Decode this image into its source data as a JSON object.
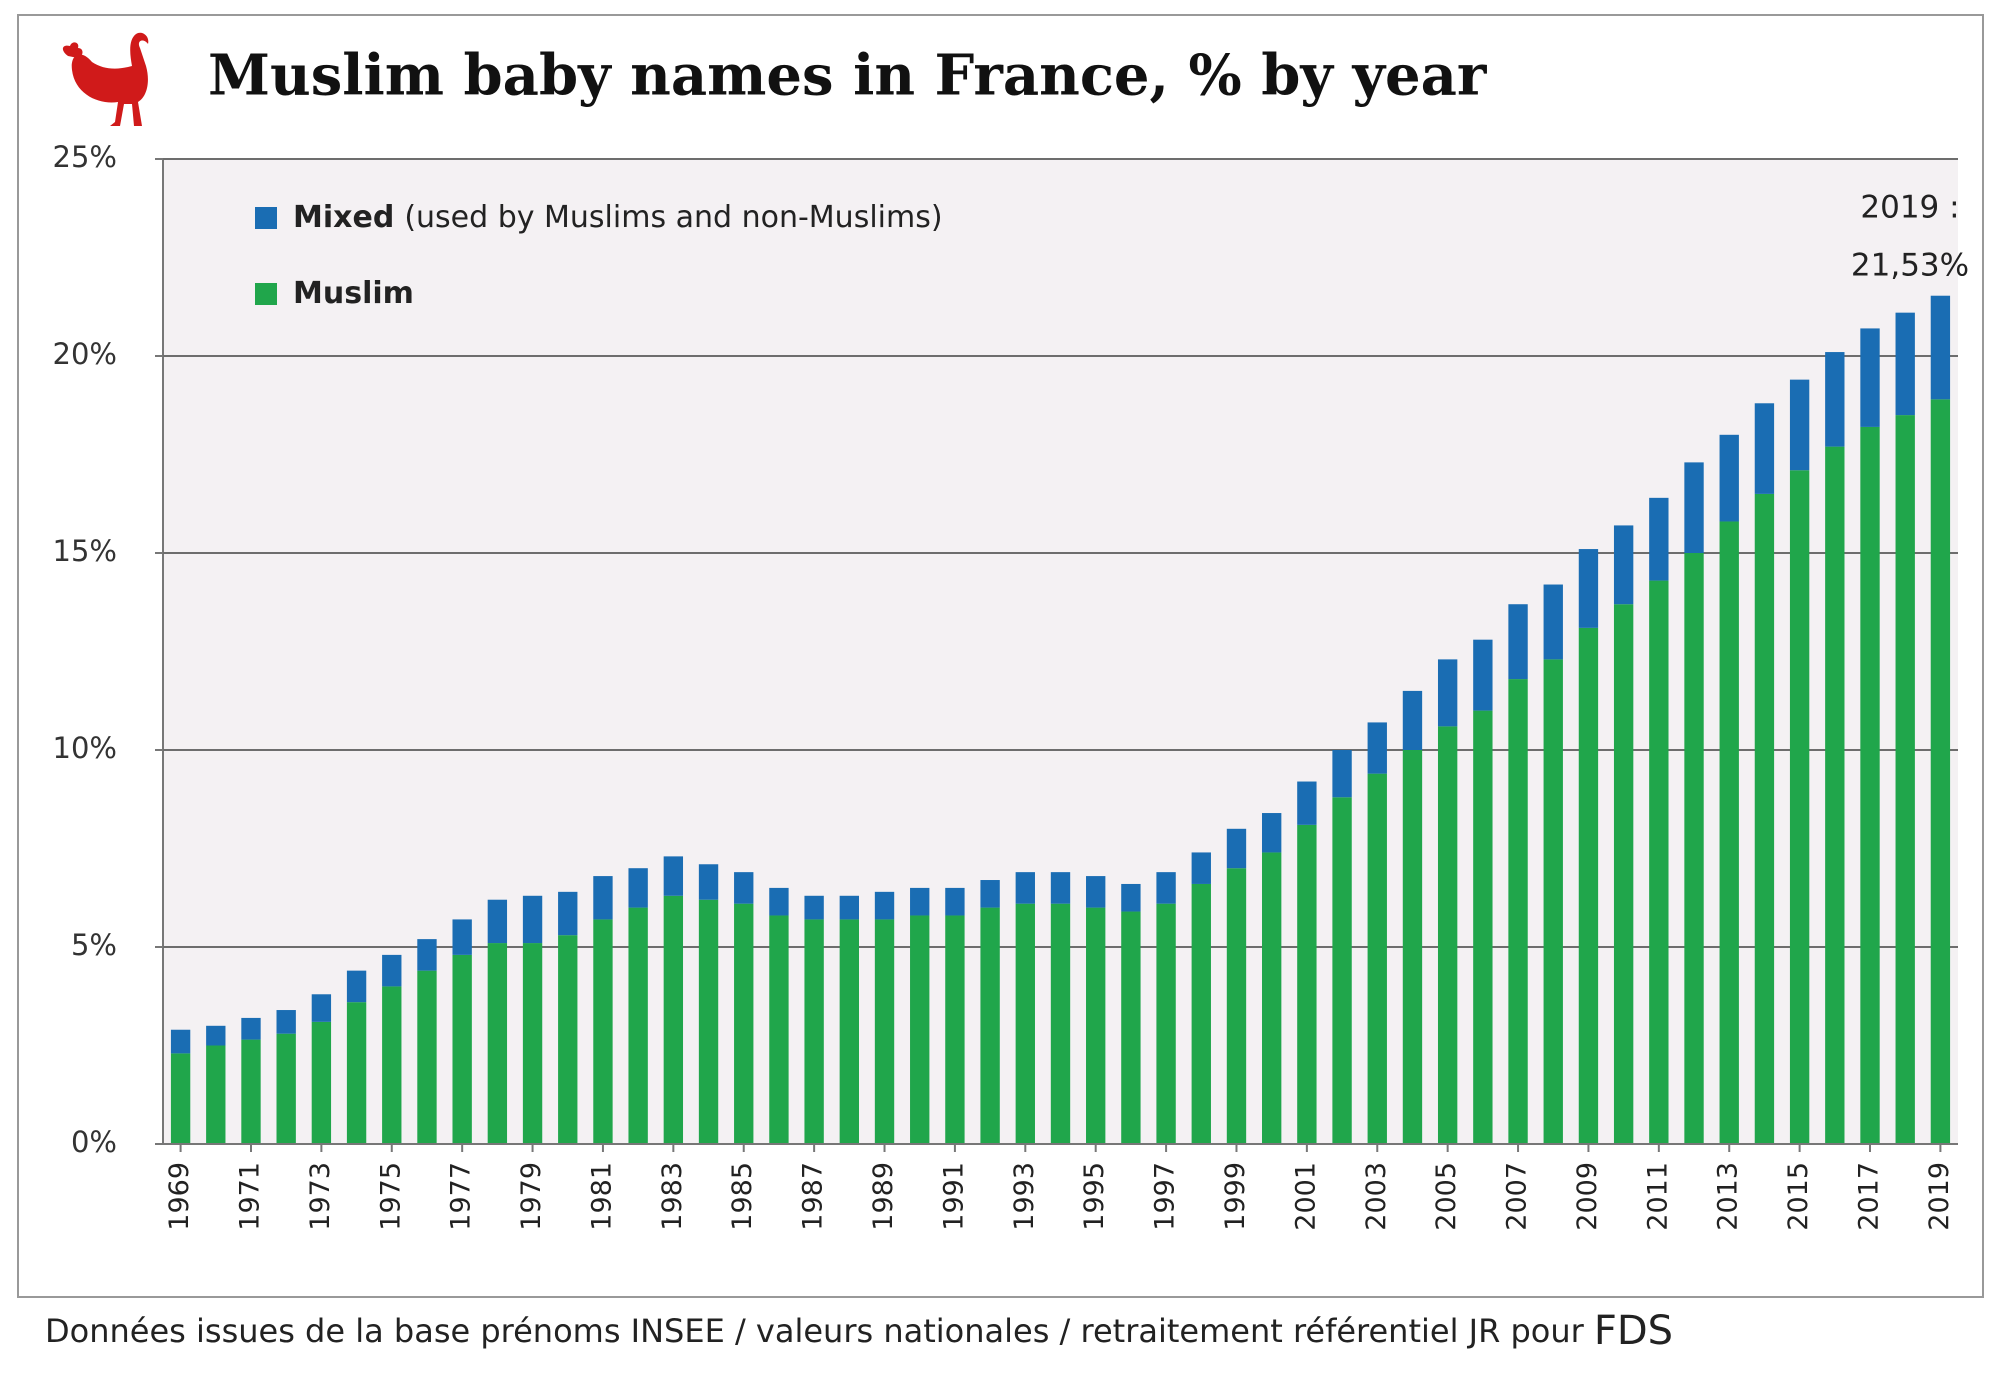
{
  "chart_data": {
    "type": "stacked_bar",
    "title": "Muslim baby names in France, % by year",
    "categories": [
      "1969",
      null,
      "1971",
      null,
      "1973",
      null,
      "1975",
      null,
      "1977",
      null,
      "1979",
      null,
      "1981",
      null,
      "1983",
      null,
      "1985",
      null,
      "1987",
      null,
      "1989",
      null,
      "1991",
      null,
      "1993",
      null,
      "1995",
      null,
      "1997",
      null,
      "1999",
      null,
      "2001",
      null,
      "2003",
      null,
      "2005",
      null,
      "2007",
      null,
      "2009",
      null,
      "2011",
      null,
      "2013",
      null,
      "2015",
      null,
      "2017",
      null,
      "2019"
    ],
    "series": [
      {
        "name": "Muslim",
        "color": "#20a64b",
        "values": [
          2.3,
          2.5,
          2.65,
          2.8,
          3.1,
          3.6,
          4.0,
          4.4,
          4.8,
          5.1,
          5.1,
          5.3,
          5.7,
          6.0,
          6.3,
          6.2,
          6.1,
          5.8,
          5.7,
          5.7,
          5.7,
          5.8,
          5.8,
          6.0,
          6.1,
          6.1,
          6.0,
          5.9,
          6.1,
          6.6,
          7.0,
          7.4,
          8.1,
          8.8,
          9.4,
          10.0,
          10.6,
          11.0,
          11.8,
          12.3,
          13.1,
          13.7,
          14.3,
          15.0,
          15.8,
          16.5,
          17.1,
          17.7,
          18.2,
          18.5,
          18.9
        ]
      },
      {
        "name": "Mixed",
        "note": "(used by Muslims and non-Muslims)",
        "color": "#1a6db3",
        "values": [
          0.6,
          0.5,
          0.55,
          0.6,
          0.7,
          0.8,
          0.8,
          0.8,
          0.9,
          1.1,
          1.2,
          1.1,
          1.1,
          1.0,
          1.0,
          0.9,
          0.8,
          0.7,
          0.6,
          0.6,
          0.7,
          0.7,
          0.7,
          0.7,
          0.8,
          0.8,
          0.8,
          0.7,
          0.8,
          0.8,
          1.0,
          1.0,
          1.1,
          1.2,
          1.3,
          1.5,
          1.7,
          1.8,
          1.9,
          1.9,
          2.0,
          2.0,
          2.1,
          2.3,
          2.2,
          2.3,
          2.3,
          2.4,
          2.5,
          2.6,
          2.63
        ]
      }
    ],
    "ylim": [
      0,
      25
    ],
    "yticks": [
      {
        "value": 0,
        "label": "0%"
      },
      {
        "value": 5,
        "label": "5%"
      },
      {
        "value": 10,
        "label": "10%"
      },
      {
        "value": 15,
        "label": "15%"
      },
      {
        "value": 20,
        "label": "20%"
      },
      {
        "value": 25,
        "label": "25%"
      }
    ],
    "grid": true,
    "legend": "upper left",
    "annotation": [
      "2019 :",
      "21,53%"
    ],
    "source": "Données issues de la base prénoms INSEE / valeurs nationales / retraitement référentiel JR pour",
    "source_brand": "FDS"
  }
}
